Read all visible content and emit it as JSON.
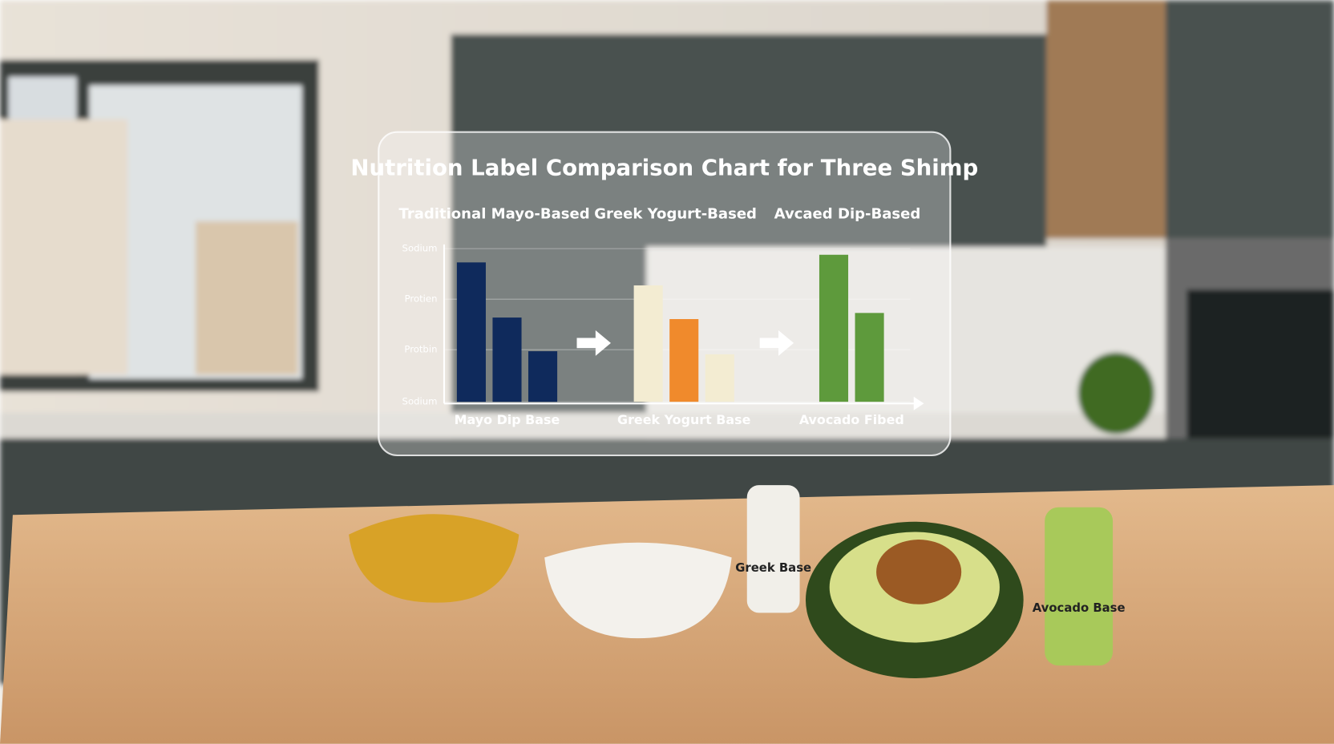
{
  "chart_data": {
    "type": "grouped-bar",
    "title": "Nutrition Label Comparison Chart for Three Shimp",
    "groups": [
      {
        "header": "Traditional Mayo-Based",
        "label": "Mayo Dip Base",
        "values": [
          91,
          55,
          33
        ],
        "colors": [
          "#0f2a5c",
          "#0f2a5c",
          "#0f2a5c"
        ]
      },
      {
        "header": "Greek Yogurt-Based",
        "label": "Greek Yogurt Base",
        "values": [
          76,
          54,
          31
        ],
        "colors": [
          "#f3ecd2",
          "#f08a2c",
          "#f3ecd2"
        ]
      },
      {
        "header": "Avcaed Dip-Based",
        "label": "Avocado Fibed",
        "values": [
          96,
          58
        ],
        "colors": [
          "#5e9a3c",
          "#5e9a3c"
        ]
      }
    ],
    "ylim": [
      0,
      100
    ],
    "yticks": [
      {
        "value": 100,
        "label": "Sodium"
      },
      {
        "value": 67,
        "label": "Protien"
      },
      {
        "value": 34,
        "label": "Protbin"
      },
      {
        "value": 0,
        "label": "Sodium"
      }
    ],
    "grid": true
  },
  "scene": {
    "jar_labels": [
      "Greek Base",
      "Avocado Base"
    ]
  }
}
